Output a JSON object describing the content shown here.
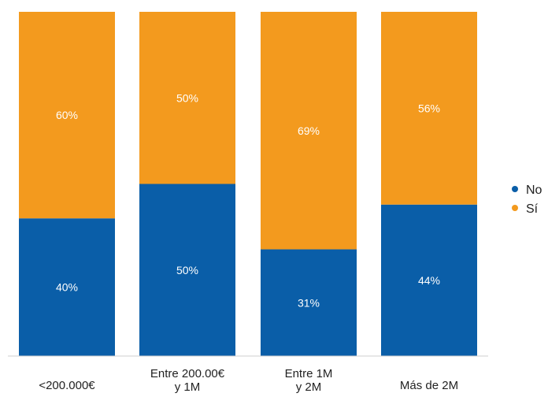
{
  "chart_data": {
    "type": "bar",
    "stacked": true,
    "normalized_percent": true,
    "categories": [
      [
        "<200.000€"
      ],
      [
        "Entre 200.00€",
        "y 1M"
      ],
      [
        "Entre 1M",
        "y 2M"
      ],
      [
        "Más de 2M"
      ]
    ],
    "series": [
      {
        "name": "No",
        "color": "#0a5ea8",
        "values": [
          40,
          50,
          31,
          44
        ],
        "labels": [
          "40%",
          "50%",
          "31%",
          "44%"
        ]
      },
      {
        "name": "Sí",
        "color": "#f39a1e",
        "values": [
          60,
          50,
          69,
          56
        ],
        "labels": [
          "60%",
          "50%",
          "69%",
          "56%"
        ]
      }
    ],
    "ylim": [
      0,
      100
    ],
    "legend_position": "right",
    "grid": false
  }
}
